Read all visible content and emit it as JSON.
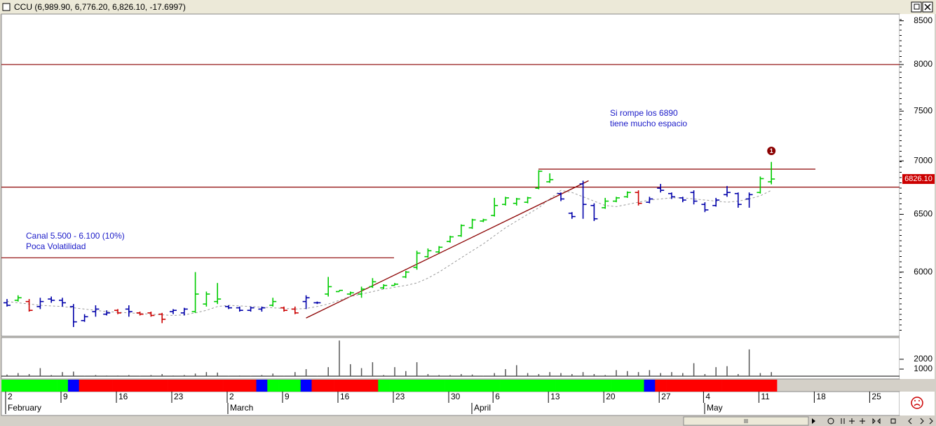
{
  "chart_data": [
    {
      "type": "ohlc",
      "title": "CCU (6,989.90, 6,776.20, 6,826.10, -17.6997)",
      "log": true,
      "ylim": [
        5490,
        8580
      ],
      "yticks": [
        6000,
        6500,
        7000,
        7500,
        8000,
        8500
      ],
      "open": [
        5750,
        5770,
        5760,
        5720,
        5780,
        5770,
        5720,
        5610,
        5680,
        5660,
        5690,
        5700,
        5670,
        5670,
        5660,
        5680,
        5670,
        5680,
        5740,
        5760,
        5720,
        5710,
        5690,
        5700,
        5730,
        5710,
        5700,
        5760,
        5750,
        5820,
        5840,
        5820,
        5820,
        5880,
        5870,
        5890,
        5960,
        6040,
        6130,
        6170,
        6260,
        6310,
        6380,
        6440,
        6490,
        6590,
        6600,
        6610,
        6740,
        6800,
        6690,
        6510,
        6780,
        6580,
        6560,
        6620,
        6660,
        6700,
        6610,
        6740,
        6690,
        6650,
        6700,
        6590,
        6580,
        6680,
        6690,
        6640,
        6700,
        6800
      ],
      "high": [
        5780,
        5810,
        5780,
        5790,
        5800,
        5790,
        5740,
        5660,
        5730,
        5690,
        5700,
        5730,
        5680,
        5680,
        5670,
        5700,
        5710,
        6000,
        5840,
        5910,
        5730,
        5720,
        5720,
        5720,
        5790,
        5720,
        5720,
        5810,
        5760,
        5960,
        5850,
        5840,
        5880,
        5950,
        5900,
        5910,
        6010,
        6180,
        6200,
        6220,
        6310,
        6410,
        6460,
        6460,
        6650,
        6660,
        6650,
        6660,
        6910,
        6880,
        6700,
        6520,
        6810,
        6600,
        6650,
        6660,
        6710,
        6720,
        6660,
        6780,
        6700,
        6660,
        6720,
        6610,
        6650,
        6760,
        6700,
        6700,
        6850,
        6989.9
      ],
      "low": [
        5720,
        5760,
        5680,
        5700,
        5750,
        5720,
        5560,
        5600,
        5640,
        5650,
        5660,
        5640,
        5650,
        5640,
        5590,
        5660,
        5650,
        5670,
        5720,
        5740,
        5700,
        5680,
        5680,
        5680,
        5720,
        5680,
        5660,
        5700,
        5740,
        5800,
        5840,
        5810,
        5790,
        5870,
        5860,
        5890,
        5950,
        6020,
        6120,
        6160,
        6250,
        6300,
        6370,
        6430,
        6480,
        6580,
        6580,
        6600,
        6730,
        6790,
        6620,
        6460,
        6460,
        6440,
        6550,
        6610,
        6650,
        6580,
        6600,
        6700,
        6640,
        6610,
        6590,
        6520,
        6570,
        6660,
        6560,
        6560,
        6690,
        6776.2
      ],
      "close": [
        5730,
        5790,
        5690,
        5760,
        5770,
        5750,
        5600,
        5640,
        5700,
        5670,
        5670,
        5680,
        5660,
        5650,
        5620,
        5690,
        5700,
        5820,
        5820,
        5780,
        5710,
        5690,
        5710,
        5710,
        5760,
        5690,
        5670,
        5790,
        5750,
        5880,
        5850,
        5830,
        5860,
        5920,
        5890,
        5900,
        6000,
        6160,
        6180,
        6210,
        6300,
        6400,
        6450,
        6450,
        6580,
        6650,
        6640,
        6650,
        6900,
        6820,
        6640,
        6480,
        6590,
        6460,
        6620,
        6650,
        6700,
        6600,
        6640,
        6720,
        6660,
        6630,
        6620,
        6540,
        6630,
        6700,
        6590,
        6680,
        6830,
        6826.1
      ],
      "last_label": "6826.10",
      "colors": [
        "#0000aa",
        "#00cc00",
        "#cc0000",
        "#0000aa",
        "#0000aa",
        "#0000aa",
        "#0000aa",
        "#0000aa",
        "#0000aa",
        "#0000aa",
        "#cc0000",
        "#0000aa",
        "#cc0000",
        "#cc0000",
        "#cc0000",
        "#0000aa",
        "#0000aa",
        "#00cc00",
        "#00cc00",
        "#00cc00",
        "#0000aa",
        "#0000aa",
        "#0000aa",
        "#0000aa",
        "#00cc00",
        "#cc0000",
        "#cc0000",
        "#0000aa",
        "#0000aa",
        "#00cc00",
        "#00cc00",
        "#00cc00",
        "#00cc00",
        "#00cc00",
        "#00cc00",
        "#00cc00",
        "#00cc00",
        "#00cc00",
        "#00cc00",
        "#00cc00",
        "#00cc00",
        "#00cc00",
        "#00cc00",
        "#00cc00",
        "#00cc00",
        "#00cc00",
        "#00cc00",
        "#00cc00",
        "#00cc00",
        "#00cc00",
        "#0000aa",
        "#0000aa",
        "#0000aa",
        "#0000aa",
        "#00cc00",
        "#00cc00",
        "#00cc00",
        "#cc0000",
        "#0000aa",
        "#0000aa",
        "#0000aa",
        "#0000aa",
        "#0000aa",
        "#0000aa",
        "#0000aa",
        "#0000aa",
        "#0000aa",
        "#0000aa",
        "#00cc00",
        "#00cc00"
      ],
      "moving_average": [
        5760,
        5750,
        5740,
        5730,
        5725,
        5720,
        5710,
        5700,
        5690,
        5680,
        5675,
        5670,
        5665,
        5660,
        5655,
        5650,
        5655,
        5670,
        5690,
        5720,
        5730,
        5725,
        5720,
        5715,
        5710,
        5705,
        5700,
        5705,
        5720,
        5740,
        5770,
        5800,
        5820,
        5840,
        5860,
        5875,
        5890,
        5910,
        5950,
        6000,
        6060,
        6120,
        6180,
        6240,
        6310,
        6380,
        6440,
        6500,
        6560,
        6640,
        6720,
        6700,
        6660,
        6620,
        6580,
        6570,
        6590,
        6610,
        6630,
        6640,
        6650,
        6650,
        6640,
        6630,
        6620,
        6610,
        6620,
        6640,
        6670,
        6720
      ],
      "ma_color": "#999999",
      "hlines": [
        8000,
        6750,
        6120,
        6920
      ],
      "line_color": "#8b0000",
      "trendline": [
        5630,
        6810
      ],
      "annotations": [
        [
          "Si rompe los 6890",
          "tiene mucho espacio"
        ],
        [
          "Canal 5.500 - 6.100  (10%)",
          "Poca Volatilidad"
        ]
      ],
      "signal_label": "1",
      "strip_colors": [
        "#00ff00",
        "#00ff00",
        "#00ff00",
        "#00ff00",
        "#00ff00",
        "#00ff00",
        "#0000ff",
        "#ff0000",
        "#ff0000",
        "#ff0000",
        "#ff0000",
        "#ff0000",
        "#ff0000",
        "#ff0000",
        "#ff0000",
        "#ff0000",
        "#ff0000",
        "#ff0000",
        "#ff0000",
        "#ff0000",
        "#ff0000",
        "#ff0000",
        "#ff0000",
        "#0000ff",
        "#00ff00",
        "#00ff00",
        "#00ff00",
        "#0000ff",
        "#ff0000",
        "#ff0000",
        "#ff0000",
        "#ff0000",
        "#ff0000",
        "#ff0000",
        "#00ff00",
        "#00ff00",
        "#00ff00",
        "#00ff00",
        "#00ff00",
        "#00ff00",
        "#00ff00",
        "#00ff00",
        "#00ff00",
        "#00ff00",
        "#00ff00",
        "#00ff00",
        "#00ff00",
        "#00ff00",
        "#00ff00",
        "#00ff00",
        "#00ff00",
        "#00ff00",
        "#00ff00",
        "#00ff00",
        "#00ff00",
        "#00ff00",
        "#00ff00",
        "#00ff00",
        "#0000ff",
        "#ff0000",
        "#ff0000",
        "#ff0000",
        "#ff0000",
        "#ff0000",
        "#ff0000",
        "#ff0000",
        "#ff0000",
        "#ff0000",
        "#ff0000",
        "#ff0000"
      ],
      "x_labels": [
        "2",
        "9",
        "16",
        "23",
        "2",
        "9",
        "16",
        "23",
        "30",
        "6",
        "13",
        "20",
        "27",
        "4",
        "11",
        "18",
        "25"
      ],
      "months": [
        "February",
        "March",
        "April",
        "May"
      ]
    },
    {
      "type": "bar",
      "values": [
        450,
        600,
        500,
        1100,
        400,
        700,
        750,
        300,
        400,
        350,
        350,
        400,
        300,
        400,
        500,
        350,
        400,
        550,
        700,
        650,
        300,
        350,
        300,
        400,
        550,
        300,
        700,
        1000,
        300,
        1200,
        3900,
        1500,
        1100,
        1700,
        400,
        1200,
        800,
        1700,
        500,
        400,
        400,
        500,
        450,
        300,
        600,
        1000,
        1400,
        600,
        500,
        700,
        600,
        500,
        700,
        500,
        400,
        900,
        800,
        700,
        900,
        600,
        700,
        600,
        1600,
        500,
        1200,
        1300,
        500,
        3000,
        600,
        700
      ],
      "color": "#555555",
      "ylim": [
        0,
        4200
      ],
      "yticks": [
        1000,
        2000
      ]
    }
  ]
}
